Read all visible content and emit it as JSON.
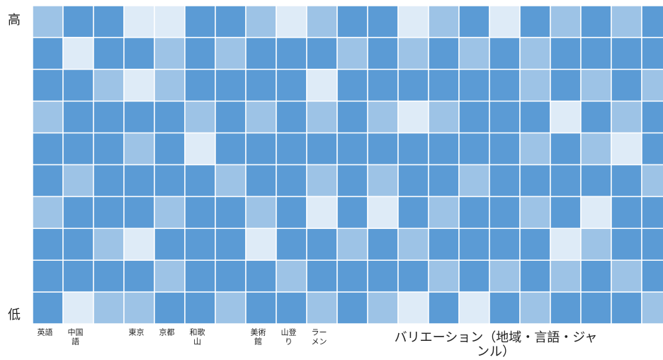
{
  "levels": {
    "high": "高",
    "low": "低"
  },
  "palette": {
    "D": "#5b9bd5",
    "M": "#9dc3e6",
    "L": "#deebf7"
  },
  "grid": [
    "MDDLLDDMLMDDLMDLDMDMD",
    "DLDDMDMDDDMDMDMDMDDDD",
    "DDMLMDDDDLDDDDDDMDMDM",
    "MDDDDMDMDMDMLMDDDLDMD",
    "DDDMDLDDDDDDDDDDMDMLD",
    "DMDDDDMDDMDMDDMDDDDDM",
    "MDDDMDDMDLDLDMDDMDLDD",
    "DDMLDDDLDDMDMDDDDLMDD",
    "DDDDMDDDMDDDDMDMDMDMD",
    "DLMMDDMDDMDMLDLDMDDDM"
  ],
  "column_labels": [
    {
      "column": 0,
      "lines": [
        "英語"
      ]
    },
    {
      "column": 1,
      "lines": [
        "中国",
        "語"
      ]
    },
    {
      "column": 3,
      "lines": [
        "東京"
      ]
    },
    {
      "column": 4,
      "lines": [
        "京都"
      ]
    },
    {
      "column": 5,
      "lines": [
        "和歌",
        "山"
      ]
    },
    {
      "column": 7,
      "lines": [
        "美術",
        "館"
      ]
    },
    {
      "column": 8,
      "lines": [
        "山登",
        "り"
      ]
    },
    {
      "column": 9,
      "lines": [
        "ラー",
        "メン"
      ]
    }
  ],
  "axis_title": [
    "バリエーション（地域・言語・ジャ",
    "ンル）"
  ]
}
